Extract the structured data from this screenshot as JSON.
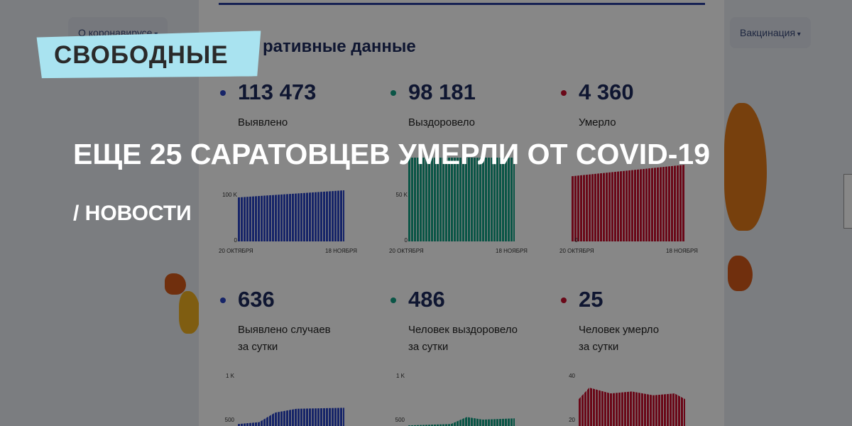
{
  "nav": {
    "left": "О коронавирусе",
    "right": "Вакцинация"
  },
  "section_title": "ративные данные",
  "stats": [
    {
      "value": "113 473",
      "label": "Выявлено",
      "chart": {
        "ytick_top": "100 K",
        "ytick_bottom": "0",
        "x_start": "20 ОКТЯБРЯ",
        "x_end": "18 НОЯБРЯ"
      }
    },
    {
      "value": "98 181",
      "label": "Выздоровело",
      "chart": {
        "ytick_top": "50 K",
        "ytick_bottom": "0",
        "x_start": "20 ОКТЯБРЯ",
        "x_end": "18 НОЯБРЯ"
      }
    },
    {
      "value": "4 360",
      "label": "Умерло",
      "chart": {
        "ytick_bottom": "0",
        "x_start": "20 ОКТЯБРЯ",
        "x_end": "18 НОЯБРЯ"
      }
    }
  ],
  "daily": [
    {
      "value": "636",
      "label_lines": [
        "Выявлено случаев",
        "за сутки"
      ],
      "chart": {
        "ytick_top": "1 K",
        "ytick_mid": "500"
      }
    },
    {
      "value": "486",
      "label_lines": [
        "Человек выздоровело",
        "за сутки"
      ],
      "chart": {
        "ytick_top": "1 K",
        "ytick_mid": "500"
      }
    },
    {
      "value": "25",
      "label_lines": [
        "Человек умерло",
        "за сутки"
      ],
      "chart": {
        "ytick_top": "40",
        "ytick_mid": "20"
      }
    }
  ],
  "overlay": {
    "brand": "СВОБОДНЫЕ",
    "headline": "ЕЩЕ 25 САРАТОВЦЕВ УМЕРЛИ ОТ COVID-19",
    "rubric": "/ НОВОСТИ"
  }
}
